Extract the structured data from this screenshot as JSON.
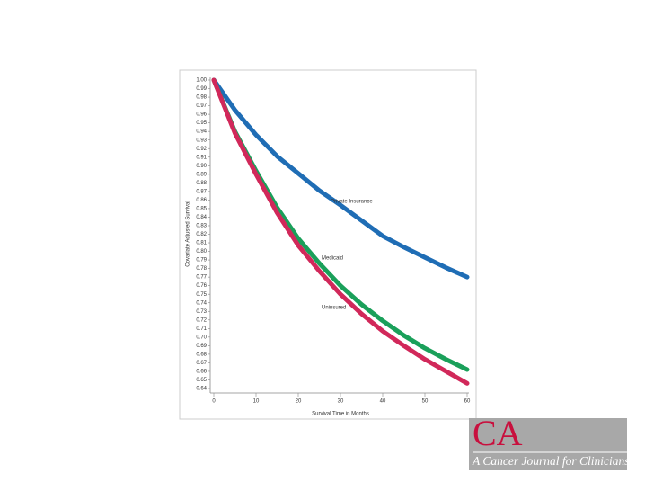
{
  "chart_data": {
    "type": "line",
    "xlabel": "Survival Time in Months",
    "ylabel": "Covariate Adjusted Survival",
    "x": [
      0,
      5,
      10,
      15,
      20,
      25,
      30,
      35,
      40,
      45,
      50,
      55,
      60
    ],
    "series": [
      {
        "name": "Private Insurance",
        "color": "#1f6db5",
        "values": [
          1.0,
          0.965,
          0.936,
          0.911,
          0.891,
          0.871,
          0.854,
          0.836,
          0.818,
          0.805,
          0.793,
          0.781,
          0.77
        ]
      },
      {
        "name": "Medicaid",
        "color": "#1aa05a",
        "values": [
          1.0,
          0.94,
          0.894,
          0.851,
          0.815,
          0.786,
          0.76,
          0.738,
          0.719,
          0.702,
          0.687,
          0.674,
          0.662
        ]
      },
      {
        "name": "Uninsured",
        "color": "#d1285a",
        "values": [
          1.0,
          0.938,
          0.89,
          0.845,
          0.807,
          0.777,
          0.75,
          0.727,
          0.707,
          0.69,
          0.674,
          0.66,
          0.646
        ]
      }
    ],
    "xlim": [
      0,
      60
    ],
    "xticks": [
      0,
      10,
      20,
      30,
      40,
      50,
      60
    ],
    "ylim": [
      0.64,
      1.0
    ],
    "yticks": [
      0.64,
      0.65,
      0.66,
      0.67,
      0.68,
      0.69,
      {
        "value": 0.7,
        "label": "0.70"
      },
      0.71,
      0.72,
      0.73,
      0.74,
      0.75,
      0.76,
      0.77,
      0.78,
      0.79,
      {
        "value": 0.8,
        "label": "0.80"
      },
      0.81,
      0.82,
      0.83,
      0.84,
      0.85,
      0.86,
      0.87,
      0.88,
      0.89,
      {
        "value": 0.9,
        "label": "0.90"
      },
      0.91,
      0.92,
      0.93,
      0.94,
      0.95,
      0.96,
      0.97,
      0.98,
      0.99,
      {
        "value": 1.0,
        "label": "1.00"
      }
    ]
  },
  "logo": {
    "mark": "CA",
    "text": "A Cancer Journal for Clinicians"
  }
}
